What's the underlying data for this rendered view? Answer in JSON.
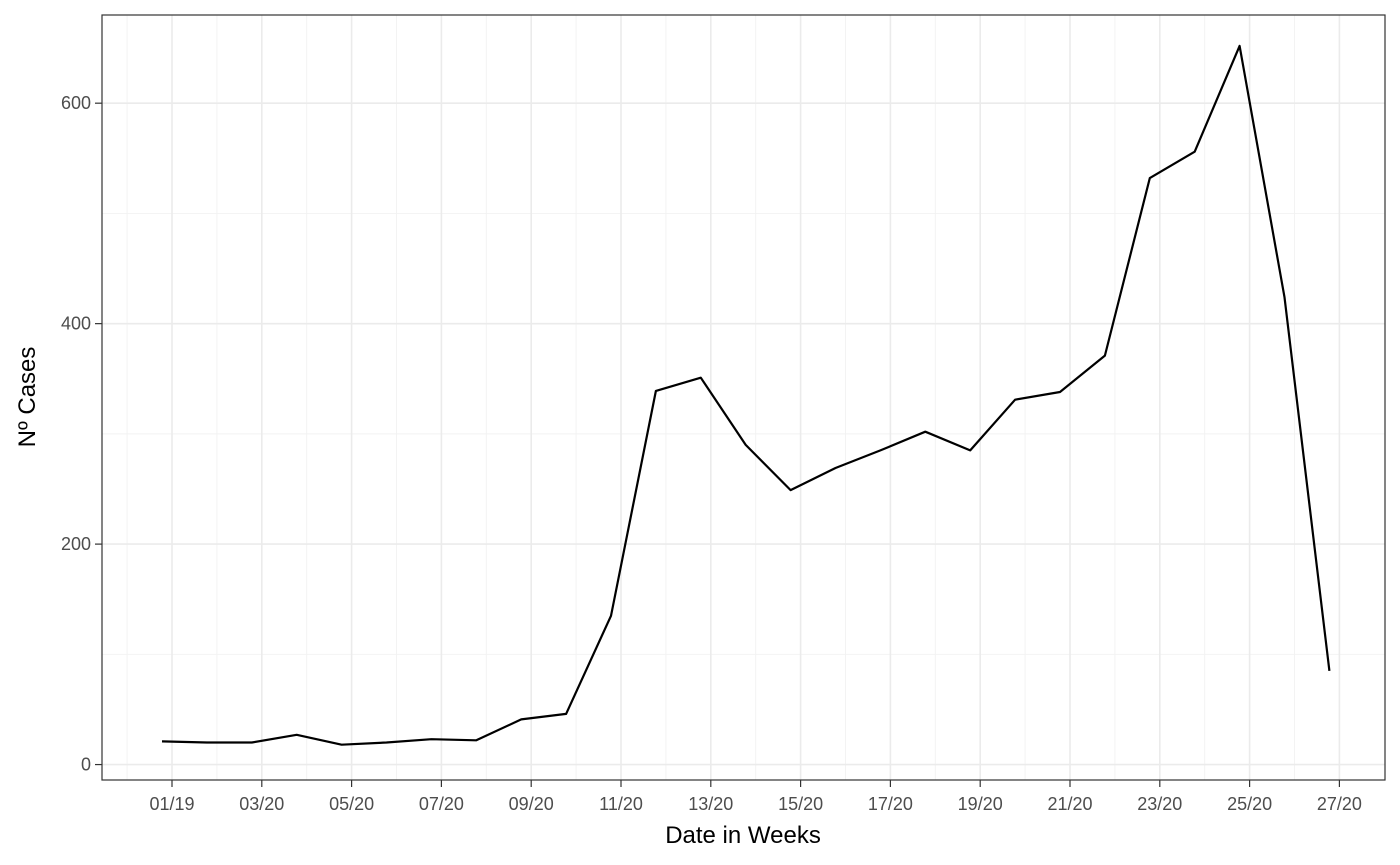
{
  "chart_data": {
    "type": "line",
    "title": "",
    "xlabel": "Date in Weeks",
    "ylabel": "Nº Cases",
    "x_ticks": [
      "01/19",
      "03/20",
      "05/20",
      "07/20",
      "09/20",
      "11/20",
      "13/20",
      "15/20",
      "17/20",
      "19/20",
      "21/20",
      "23/20",
      "25/20",
      "27/20"
    ],
    "y_ticks": [
      0,
      200,
      400,
      600
    ],
    "ylim": [
      -14,
      680
    ],
    "grid": true,
    "colors": {
      "line": "#000000",
      "grid": "#ebebeb",
      "border": "#333333"
    },
    "series": [
      {
        "x": [
          "01/19",
          "02/20",
          "03/20",
          "04/20",
          "05/20",
          "06/20",
          "07/20",
          "08/20",
          "09/20",
          "10/20",
          "11/20",
          "12/20",
          "13/20",
          "14/20",
          "15/20",
          "16/20",
          "17/20",
          "18/20",
          "19/20",
          "20/20",
          "21/20",
          "22/20",
          "23/20",
          "24/20",
          "25/20",
          "26/20",
          "27/20"
        ],
        "values": [
          21,
          20,
          20,
          27,
          18,
          20,
          23,
          22,
          41,
          46,
          135,
          339,
          351,
          290,
          249,
          269,
          285,
          302,
          285,
          331,
          338,
          371,
          532,
          556,
          652,
          424,
          85
        ]
      }
    ]
  }
}
